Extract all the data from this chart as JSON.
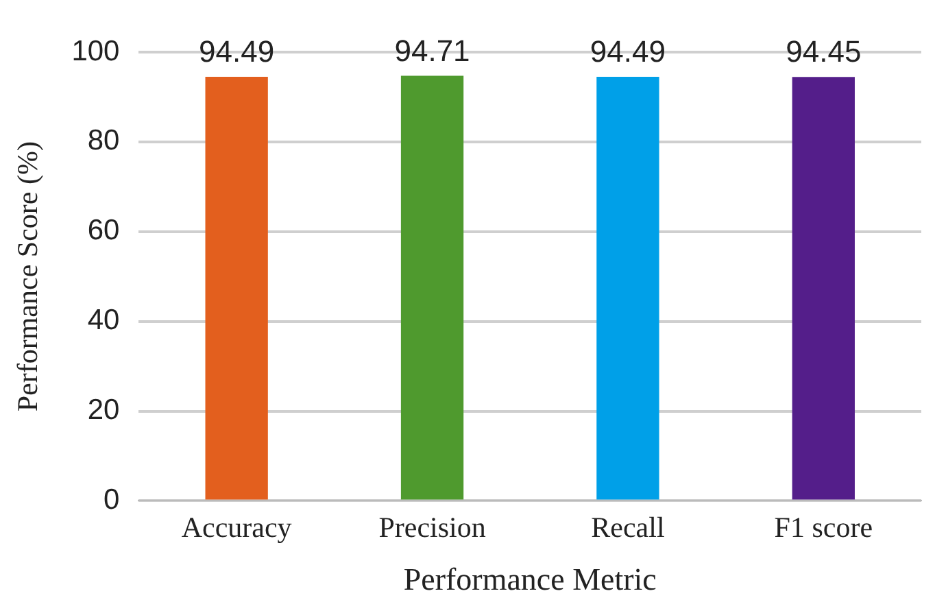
{
  "chart_data": {
    "type": "bar",
    "xlabel": "Performance Metric",
    "ylabel": "Performance Score (%)",
    "categories": [
      "Accuracy",
      "Precision",
      "Recall",
      "F1 score"
    ],
    "values": [
      94.49,
      94.71,
      94.49,
      94.45
    ],
    "colors": [
      "#e35f1e",
      "#4f9a2e",
      "#00a0e8",
      "#541e8a"
    ],
    "ylim": [
      0,
      100
    ],
    "yticks": [
      0,
      20,
      40,
      60,
      80,
      100
    ],
    "grid": "y",
    "data_labels": true,
    "legend": false
  }
}
